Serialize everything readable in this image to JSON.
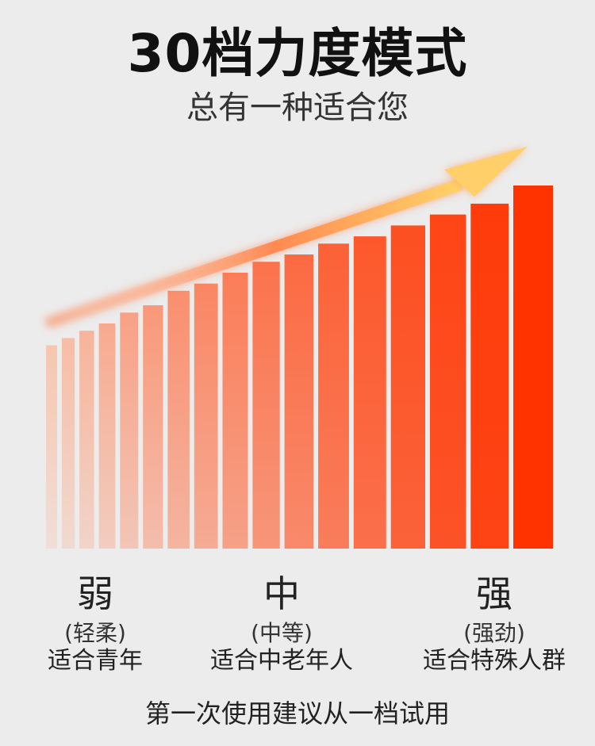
{
  "title": "30档力度模式",
  "subtitle": "总有一种适合您",
  "levels": [
    {
      "label": "弱",
      "paren": "(轻柔)",
      "desc": "适合青年"
    },
    {
      "label": "中",
      "paren": "(中等)",
      "desc": "适合中老年人"
    },
    {
      "label": "强",
      "paren": "(强劲)",
      "desc": "适合特殊人群"
    }
  ],
  "footer": "第一次使用建议从一档试用",
  "colors": {
    "bar_weak": "#f6c6b0",
    "bar_strong": "#ff3300",
    "arrow": "#ffd46a",
    "background": "#ececec"
  },
  "bars": {
    "count": 17,
    "relative_heights": [
      0.56,
      0.58,
      0.6,
      0.62,
      0.65,
      0.67,
      0.71,
      0.73,
      0.76,
      0.79,
      0.81,
      0.84,
      0.86,
      0.89,
      0.92,
      0.95,
      1.0
    ]
  }
}
